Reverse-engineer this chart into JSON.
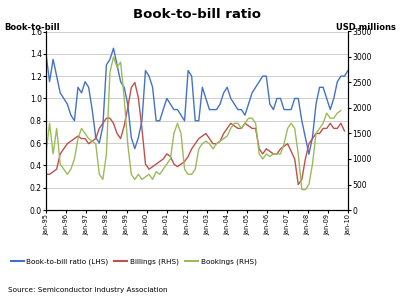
{
  "title": "Book-to-bill ratio",
  "ylabel_left": "Book-to-bill",
  "ylabel_right": "USD millions",
  "source": "Source: Semiconductor Industry Association",
  "ylim_left": [
    0,
    1.6
  ],
  "ylim_right": [
    0,
    3500
  ],
  "yticks_left": [
    0,
    0.2,
    0.4,
    0.6,
    0.8,
    1.0,
    1.2,
    1.4,
    1.6
  ],
  "yticks_right": [
    0,
    500,
    1000,
    1500,
    2000,
    2500,
    3000,
    3500
  ],
  "xtick_labels": [
    "Jan-95",
    "Jan-96",
    "Jan-97",
    "Jan-98",
    "Jan-99",
    "Jan-00",
    "Jan-01",
    "Jan-02",
    "Jan-03",
    "Jan-04",
    "Jan-05",
    "Jan-06",
    "Jan-07",
    "Jan-08",
    "Jan-09",
    "Jan-10"
  ],
  "color_btb": "#4472C4",
  "color_billings": "#C0504D",
  "color_bookings": "#9BBB59",
  "legend_labels": [
    "Book-to-bill ratio (LHS)",
    "Billings (RHS)",
    "Bookings (RHS)"
  ],
  "bg_color": "#FFFFFF",
  "footer_color": "#D3D3D3",
  "ifast_bg": "#2D2D2D",
  "btb": [
    1.4,
    1.15,
    1.35,
    1.2,
    1.05,
    1.0,
    0.95,
    0.85,
    0.8,
    1.1,
    1.05,
    1.15,
    1.1,
    0.9,
    0.65,
    0.6,
    0.75,
    1.3,
    1.35,
    1.45,
    1.3,
    1.15,
    1.1,
    0.95,
    0.65,
    0.55,
    0.65,
    0.8,
    1.25,
    1.2,
    1.1,
    0.8,
    0.8,
    0.9,
    1.0,
    0.95,
    0.9,
    0.9,
    0.85,
    0.8,
    1.25,
    1.2,
    0.8,
    0.8,
    1.1,
    1.0,
    0.9,
    0.9,
    0.9,
    0.95,
    1.05,
    1.1,
    1.0,
    0.95,
    0.9,
    0.9,
    0.85,
    0.95,
    1.05,
    1.1,
    1.15,
    1.2,
    1.2,
    0.95,
    0.9,
    1.0,
    1.0,
    0.9,
    0.9,
    0.9,
    1.0,
    1.0,
    0.8,
    0.65,
    0.5,
    0.65,
    0.95,
    1.1,
    1.1,
    1.0,
    0.9,
    1.0,
    1.15,
    1.2,
    1.2,
    1.25
  ],
  "billings": [
    700,
    700,
    750,
    800,
    1100,
    1200,
    1300,
    1350,
    1400,
    1450,
    1400,
    1400,
    1300,
    1350,
    1400,
    1600,
    1700,
    1800,
    1800,
    1700,
    1500,
    1400,
    1650,
    2000,
    2400,
    2500,
    2200,
    1600,
    900,
    800,
    850,
    900,
    950,
    1000,
    1100,
    1050,
    900,
    850,
    900,
    950,
    1050,
    1200,
    1300,
    1400,
    1450,
    1500,
    1400,
    1300,
    1300,
    1350,
    1500,
    1600,
    1700,
    1650,
    1600,
    1600,
    1700,
    1650,
    1600,
    1600,
    1200,
    1100,
    1200,
    1150,
    1100,
    1100,
    1200,
    1250,
    1300,
    1150,
    1000,
    500,
    600,
    1000,
    1300,
    1400,
    1500,
    1500,
    1600,
    1600,
    1700,
    1600,
    1600,
    1700,
    1550
  ],
  "bookings": [
    1100,
    1700,
    1100,
    1600,
    900,
    800,
    700,
    800,
    1000,
    1400,
    1600,
    1500,
    1400,
    1350,
    1300,
    700,
    600,
    1100,
    2700,
    3000,
    2800,
    2900,
    2200,
    1300,
    700,
    600,
    700,
    600,
    650,
    700,
    600,
    750,
    700,
    800,
    900,
    1000,
    1500,
    1700,
    1500,
    800,
    700,
    700,
    800,
    1200,
    1300,
    1350,
    1300,
    1200,
    1300,
    1350,
    1400,
    1450,
    1600,
    1700,
    1700,
    1600,
    1700,
    1800,
    1800,
    1700,
    1100,
    1000,
    1100,
    1050,
    1100,
    1100,
    1100,
    1300,
    1600,
    1700,
    1600,
    1100,
    400,
    400,
    500,
    900,
    1500,
    1600,
    1700,
    1900,
    1800,
    1800,
    1900,
    1950
  ]
}
